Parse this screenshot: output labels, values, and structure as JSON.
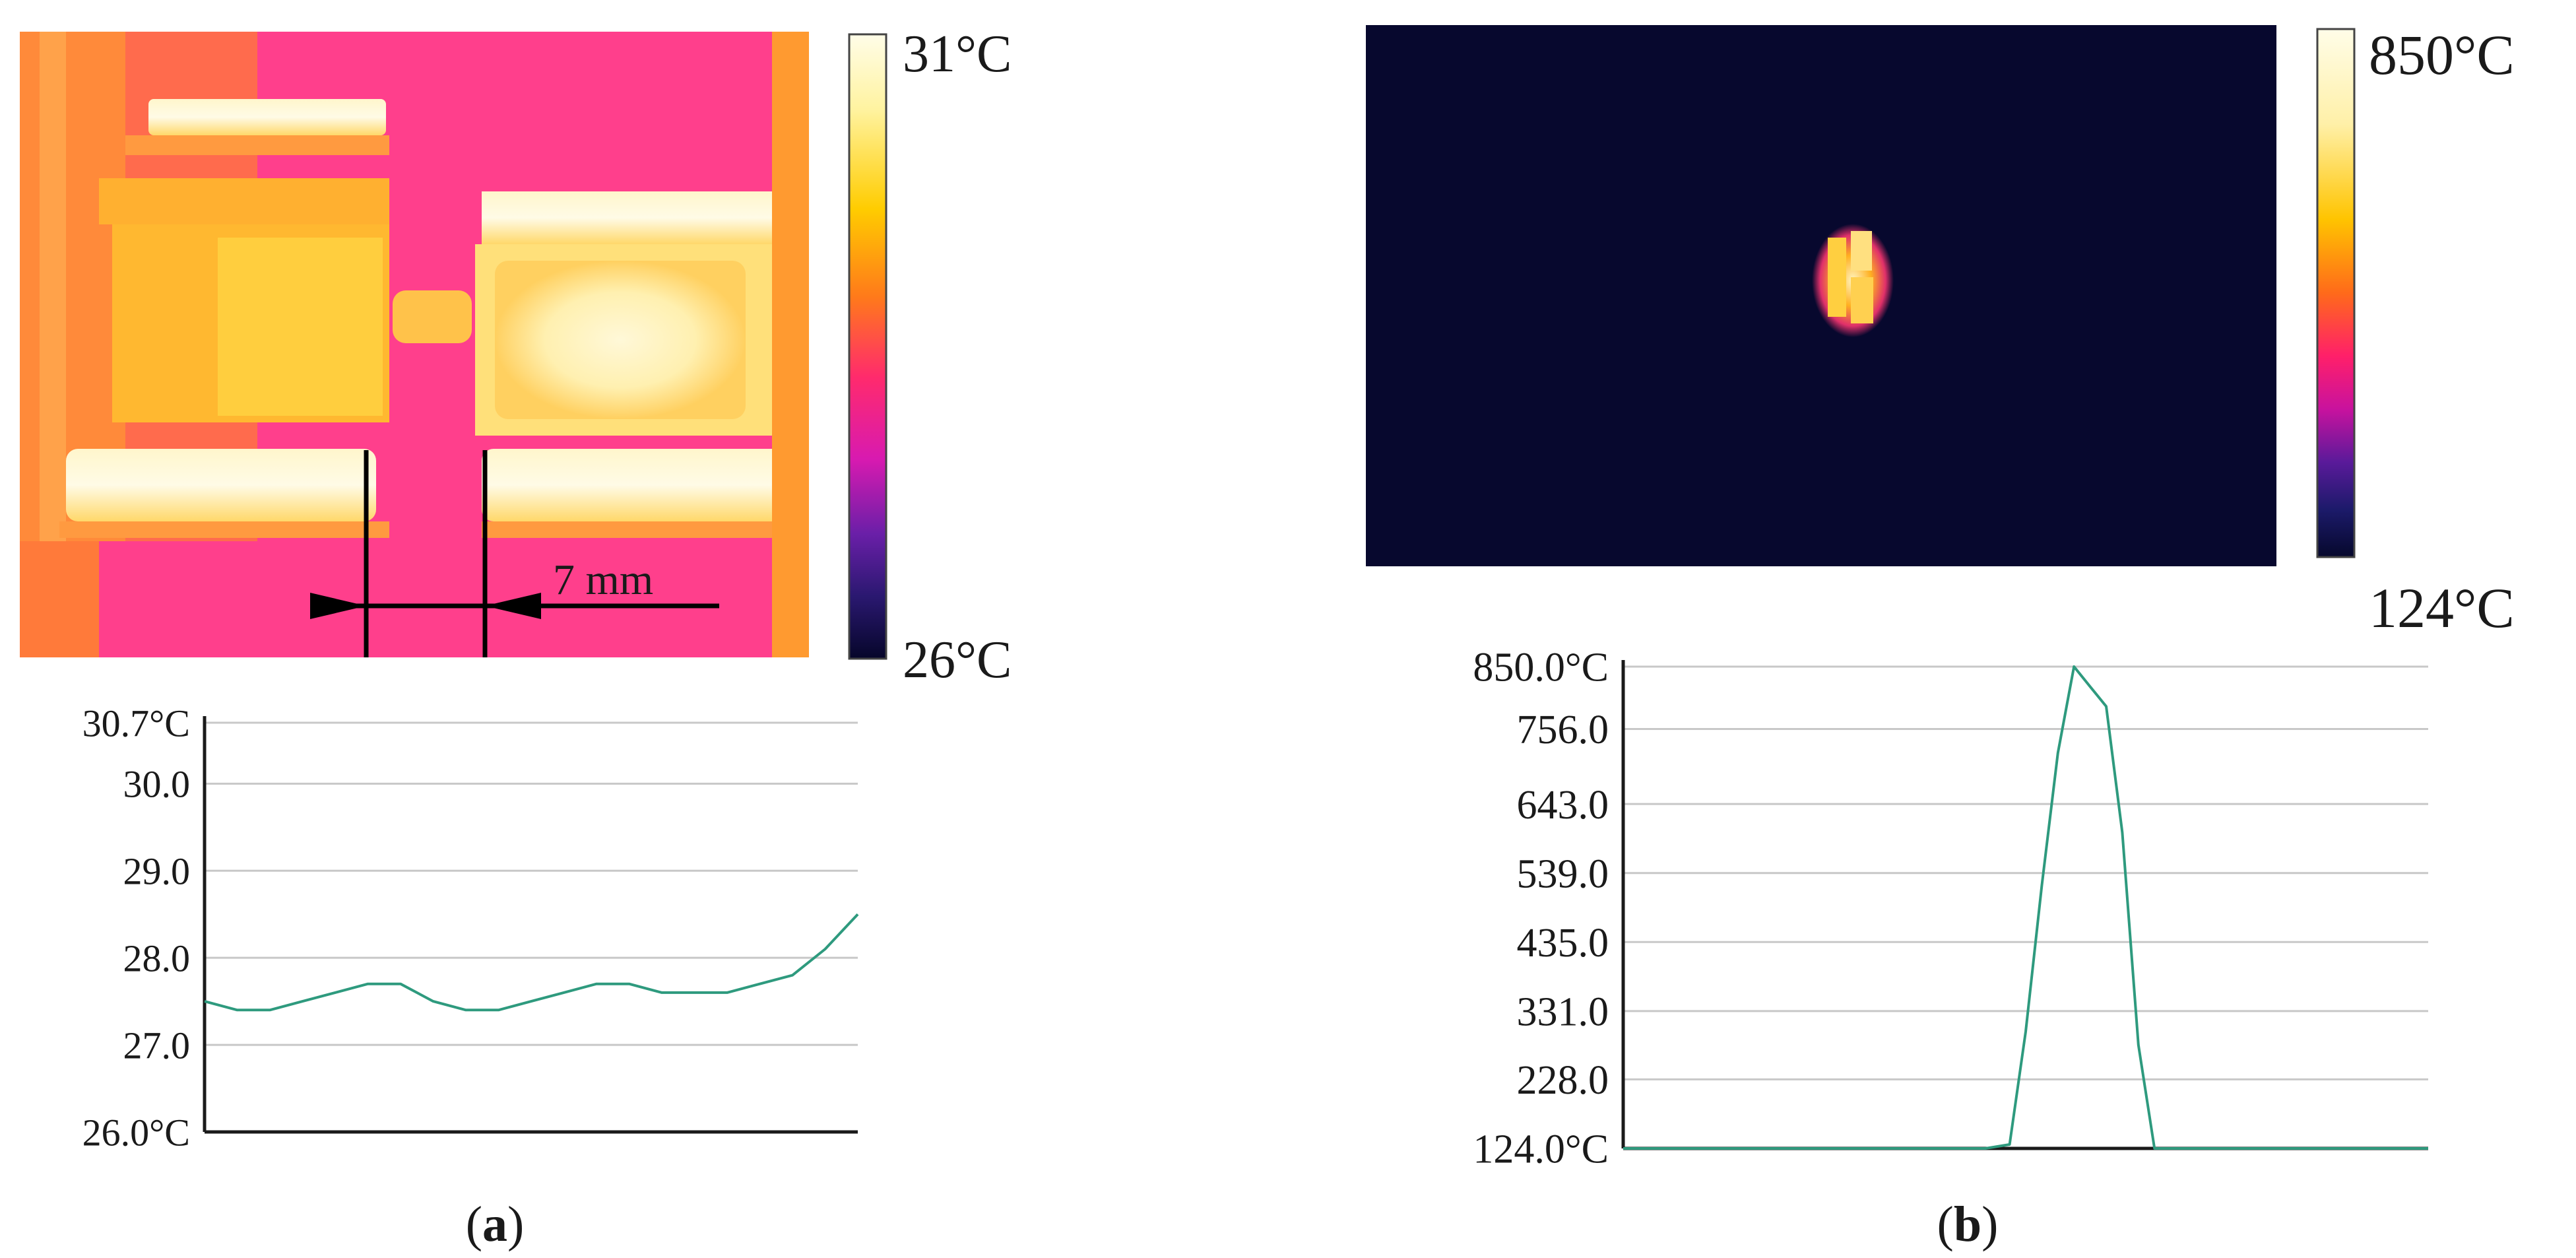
{
  "panel_a": {
    "thermal": {
      "scale_max": "31°C",
      "scale_min": "26°C",
      "dimension_label": "7 mm"
    },
    "caption": {
      "open": "(",
      "letter": "a",
      "close": ")"
    }
  },
  "panel_b": {
    "thermal": {
      "scale_max": "850°C",
      "scale_min": "124°C"
    },
    "caption": {
      "open": "(",
      "letter": "b",
      "close": ")"
    }
  },
  "colors": {
    "trace": "#2e9a7e",
    "grid": "#c8c8c8",
    "axis": "#1a1a1a",
    "thermal_b_background": "#07082e"
  },
  "chart_data": [
    {
      "type": "line",
      "title": "",
      "xlabel": "",
      "ylabel": "",
      "ylim": [
        26.0,
        30.7
      ],
      "grid": true,
      "y_ticks": [
        "30.7°C",
        "30.0",
        "29.0",
        "28.0",
        "27.0",
        "26.0°C"
      ],
      "y_tick_values": [
        30.7,
        30.0,
        29.0,
        28.0,
        27.0,
        26.0
      ],
      "x": [
        0,
        5,
        10,
        15,
        20,
        25,
        30,
        35,
        40,
        45,
        50,
        55,
        60,
        65,
        70,
        75,
        80,
        85,
        90,
        95,
        100
      ],
      "series": [
        {
          "values": [
            27.5,
            27.4,
            27.4,
            27.5,
            27.6,
            27.7,
            27.7,
            27.5,
            27.4,
            27.4,
            27.5,
            27.6,
            27.7,
            27.7,
            27.6,
            27.6,
            27.6,
            27.7,
            27.8,
            28.1,
            28.5
          ]
        }
      ]
    },
    {
      "type": "line",
      "title": "",
      "xlabel": "",
      "ylabel": "",
      "ylim": [
        124.0,
        850.0
      ],
      "grid": true,
      "y_ticks": [
        "850.0°C",
        "756.0",
        "643.0",
        "539.0",
        "435.0",
        "331.0",
        "228.0",
        "124.0°C"
      ],
      "y_tick_values": [
        850.0,
        756.0,
        643.0,
        539.0,
        435.0,
        331.0,
        228.0,
        124.0
      ],
      "x": [
        0,
        5,
        10,
        15,
        20,
        25,
        30,
        35,
        40,
        45,
        48,
        50,
        52,
        54,
        56,
        58,
        60,
        62,
        64,
        66,
        70,
        80,
        90,
        100
      ],
      "series": [
        {
          "values": [
            124,
            124,
            124,
            124,
            124,
            124,
            124,
            124,
            124,
            124,
            130,
            300,
            520,
            720,
            850,
            820,
            790,
            600,
            280,
            124,
            124,
            124,
            124,
            124
          ]
        }
      ]
    }
  ]
}
